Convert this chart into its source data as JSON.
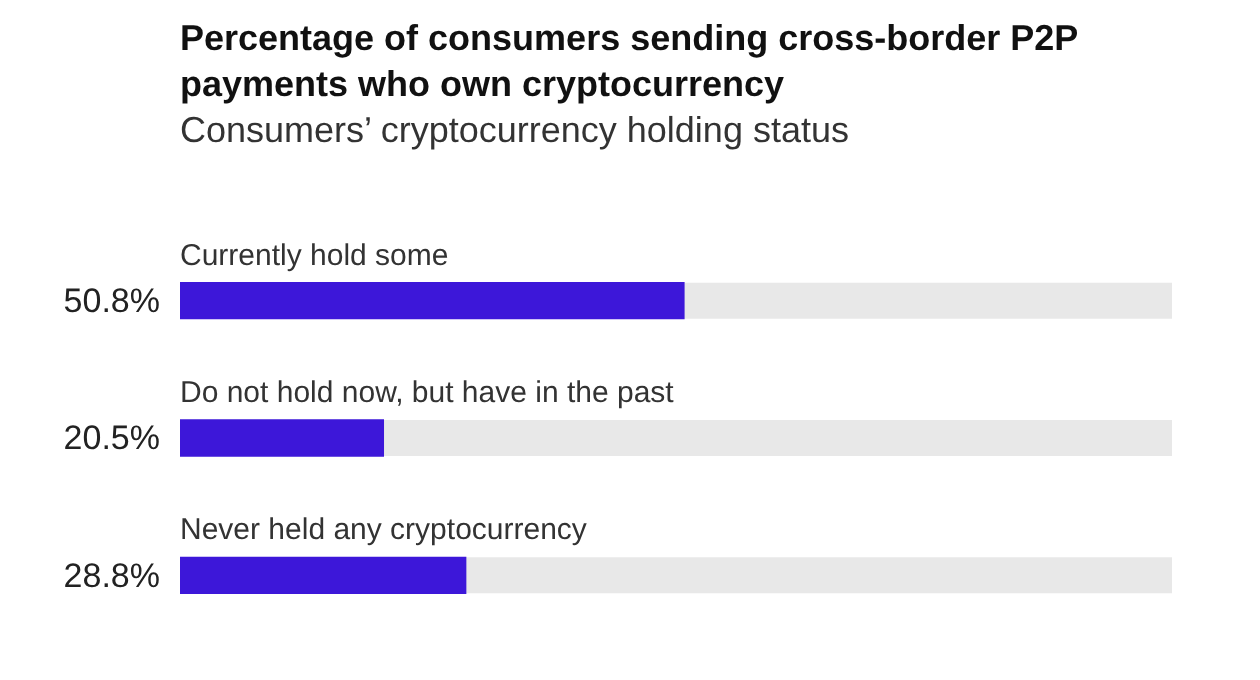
{
  "chart_data": {
    "type": "bar",
    "orientation": "horizontal",
    "title": "Percentage of consumers sending cross-border P2P payments who own cryptocurrency",
    "subtitle": "Consumers’ cryptocurrency holding status",
    "categories": [
      "Currently hold some",
      "Do not hold now, but have in the past",
      "Never held any cryptocurrency"
    ],
    "values": [
      50.8,
      20.5,
      28.8
    ],
    "value_labels": [
      "50.8%",
      "20.5%",
      "28.8%"
    ],
    "color": "#3d17d9",
    "xlim": [
      0,
      100
    ]
  }
}
